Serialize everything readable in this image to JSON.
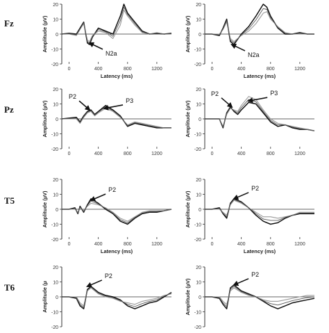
{
  "figure": {
    "row_labels": [
      "Fz",
      "Pz",
      "T5",
      "T6"
    ],
    "y_axis_title": "Amplitude (µV)",
    "y_axis_title_t6_left": "Amplitude (µ",
    "x_axis_title": "Latency (ms)",
    "colors": {
      "trace_black": "#111111",
      "trace_gray": "#9a9a9a",
      "trace_dark_gray": "#555555",
      "axis": "#333333"
    }
  },
  "chart_data": [
    {
      "id": "fz-left",
      "row": "Fz",
      "column": "left",
      "type": "line",
      "xlabel": "Latency (ms)",
      "ylabel": "Amplitude (µV)",
      "xlim": [
        -100,
        1400
      ],
      "ylim": [
        -20,
        20
      ],
      "xticks": [
        0,
        400,
        800,
        1200
      ],
      "yticks": [
        20,
        10,
        0,
        -10,
        -20
      ],
      "annotations": [
        {
          "text": "N2a",
          "x": 280,
          "y": -6
        }
      ],
      "series": [
        {
          "color": "black",
          "x": [
            -100,
            0,
            100,
            150,
            200,
            250,
            280,
            320,
            400,
            500,
            600,
            700,
            750,
            800,
            900,
            1000,
            1100,
            1200,
            1300,
            1400
          ],
          "y": [
            0,
            0.5,
            0,
            4,
            8,
            -6,
            -7,
            -2,
            4,
            2,
            0,
            12,
            20,
            14,
            8,
            2,
            0,
            0.5,
            0,
            0.5
          ]
        },
        {
          "color": "gray",
          "x": [
            -100,
            0,
            100,
            150,
            200,
            250,
            280,
            320,
            400,
            500,
            600,
            700,
            750,
            800,
            900,
            1000,
            1100,
            1200,
            1300,
            1400
          ],
          "y": [
            0,
            0,
            -1,
            3,
            7,
            -4,
            -5,
            -1,
            2,
            1,
            -3,
            6,
            16,
            12,
            6,
            1,
            0,
            1,
            0,
            0
          ]
        }
      ]
    },
    {
      "id": "fz-right",
      "row": "Fz",
      "column": "right",
      "type": "line",
      "xlabel": "Latency (ms)",
      "ylabel": "Amplitude (µV)",
      "xlim": [
        -100,
        1400
      ],
      "ylim": [
        -20,
        20
      ],
      "xticks": [
        0,
        400,
        800,
        1200
      ],
      "yticks": [
        20,
        10,
        0,
        -10,
        -20
      ],
      "annotations": [
        {
          "text": "N2a",
          "x": 270,
          "y": -7
        }
      ],
      "series": [
        {
          "color": "black",
          "x": [
            -100,
            0,
            100,
            150,
            200,
            250,
            300,
            400,
            500,
            600,
            700,
            750,
            800,
            900,
            1000,
            1100,
            1200,
            1300,
            1400
          ],
          "y": [
            0,
            0,
            -1,
            4,
            10,
            -5,
            -7,
            0,
            5,
            12,
            20,
            18,
            12,
            4,
            0,
            0,
            1,
            0,
            0
          ]
        },
        {
          "color": "gray",
          "x": [
            -100,
            0,
            100,
            150,
            200,
            250,
            300,
            400,
            500,
            600,
            700,
            750,
            800,
            900,
            1000,
            1100,
            1200,
            1300,
            1400
          ],
          "y": [
            0,
            0,
            0,
            3,
            8,
            -3,
            -5,
            -1,
            2,
            7,
            14,
            15,
            10,
            5,
            1,
            0,
            0,
            0,
            0
          ]
        }
      ]
    },
    {
      "id": "pz-left",
      "row": "Pz",
      "column": "left",
      "type": "line",
      "xlabel": "",
      "ylabel": "Amplitude (µV)",
      "xlim": [
        -100,
        1400
      ],
      "ylim": [
        -20,
        20
      ],
      "xticks": [
        0,
        400,
        800,
        1200
      ],
      "yticks": [
        20,
        10,
        0,
        -10,
        -20
      ],
      "annotations": [
        {
          "text": "P2",
          "x": 280,
          "y": 6
        },
        {
          "text": "P3",
          "x": 480,
          "y": 7
        }
      ],
      "series": [
        {
          "color": "black",
          "x": [
            -100,
            0,
            100,
            150,
            200,
            250,
            300,
            350,
            400,
            500,
            600,
            700,
            800,
            900,
            1000,
            1100,
            1200,
            1300,
            1400
          ],
          "y": [
            0,
            0.5,
            1,
            -2,
            2,
            5,
            6,
            3,
            5,
            9,
            6,
            2,
            -5,
            -3,
            -4,
            -5,
            -6,
            -6,
            -6
          ]
        },
        {
          "color": "gray",
          "x": [
            -100,
            0,
            100,
            150,
            200,
            250,
            300,
            350,
            400,
            500,
            600,
            700,
            800,
            900,
            1000,
            1100,
            1200,
            1300,
            1400
          ],
          "y": [
            0,
            0,
            0,
            -3,
            1,
            4,
            5,
            2,
            4,
            7,
            5,
            1,
            -4,
            -2,
            -3,
            -4,
            -5,
            -6,
            -6
          ]
        }
      ]
    },
    {
      "id": "pz-right",
      "row": "Pz",
      "column": "right",
      "type": "line",
      "xlabel": "",
      "ylabel": "Amplitude (µV)",
      "xlim": [
        -100,
        1400
      ],
      "ylim": [
        -20,
        20
      ],
      "xticks": [
        0,
        400,
        800,
        1200
      ],
      "yticks": [
        20,
        10,
        0,
        -10,
        -20
      ],
      "annotations": [
        {
          "text": "P2",
          "x": 270,
          "y": 8
        },
        {
          "text": "P3",
          "x": 500,
          "y": 12
        }
      ],
      "series": [
        {
          "color": "black",
          "x": [
            -100,
            0,
            100,
            150,
            200,
            250,
            300,
            350,
            400,
            500,
            600,
            700,
            800,
            900,
            1000,
            1100,
            1200,
            1300,
            1400
          ],
          "y": [
            0,
            0,
            0,
            -6,
            4,
            8,
            5,
            3,
            6,
            11,
            10,
            4,
            -2,
            -5,
            -4,
            -6,
            -7,
            -7,
            -8
          ]
        },
        {
          "color": "gray",
          "x": [
            -100,
            0,
            100,
            150,
            200,
            250,
            300,
            350,
            400,
            500,
            600,
            700,
            800,
            900,
            1000,
            1100,
            1200,
            1300,
            1400
          ],
          "y": [
            0,
            0,
            0,
            -5,
            3,
            7,
            6,
            5,
            9,
            15,
            13,
            6,
            0,
            -3,
            -4,
            -5,
            -6,
            -7,
            -8
          ]
        }
      ]
    },
    {
      "id": "t5-left",
      "row": "T5",
      "column": "left",
      "type": "line",
      "xlabel": "Latency (ms)",
      "ylabel": "Amplitude (µV)",
      "xlim": [
        -100,
        1400
      ],
      "ylim": [
        -20,
        20
      ],
      "xticks": [
        0,
        400,
        800,
        1200
      ],
      "yticks": [
        20,
        10,
        0,
        -10,
        -20
      ],
      "annotations": [
        {
          "text": "P2",
          "x": 300,
          "y": 6
        }
      ],
      "series": [
        {
          "color": "black",
          "x": [
            -100,
            0,
            80,
            120,
            150,
            200,
            250,
            300,
            400,
            500,
            600,
            700,
            800,
            900,
            1000,
            1100,
            1200,
            1300,
            1400
          ],
          "y": [
            0,
            0,
            1,
            -3,
            2,
            -2,
            3,
            7,
            4,
            0,
            -3,
            -8,
            -10,
            -6,
            -3,
            -2,
            -2,
            -1,
            0
          ]
        },
        {
          "color": "gray",
          "x": [
            -100,
            0,
            80,
            120,
            150,
            200,
            250,
            300,
            400,
            500,
            600,
            700,
            800,
            900,
            1000,
            1100,
            1200,
            1300,
            1400
          ],
          "y": [
            0,
            0,
            0,
            -2,
            1,
            -1,
            2,
            4,
            3,
            1,
            -2,
            -6,
            -8,
            -5,
            -2,
            -1,
            -1,
            -1,
            0
          ]
        }
      ]
    },
    {
      "id": "t5-right",
      "row": "T5",
      "column": "right",
      "type": "line",
      "xlabel": "Latency (ms)",
      "ylabel": "Amplitude (µV)",
      "xlim": [
        -100,
        1400
      ],
      "ylim": [
        -20,
        20
      ],
      "xticks": [
        0,
        400,
        800,
        1200
      ],
      "yticks": [
        20,
        10,
        0,
        -10,
        -20
      ],
      "annotations": [
        {
          "text": "P2",
          "x": 300,
          "y": 7
        }
      ],
      "series": [
        {
          "color": "black",
          "x": [
            -100,
            0,
            100,
            150,
            200,
            250,
            300,
            400,
            500,
            600,
            700,
            800,
            900,
            1000,
            1100,
            1200,
            1300,
            1400
          ],
          "y": [
            0,
            0,
            1,
            -3,
            -6,
            4,
            7,
            5,
            1,
            -4,
            -8,
            -10,
            -9,
            -6,
            -4,
            -3,
            -3,
            -3
          ]
        },
        {
          "color": "gray",
          "x": [
            -100,
            0,
            100,
            150,
            200,
            250,
            300,
            400,
            500,
            600,
            700,
            800,
            900,
            1000,
            1100,
            1200,
            1300,
            1400
          ],
          "y": [
            0,
            0,
            0,
            -2,
            -4,
            3,
            6,
            4,
            1,
            -2,
            -5,
            -5,
            -6,
            -5,
            -4,
            -2,
            -2,
            -2
          ]
        }
      ]
    },
    {
      "id": "t6-left",
      "row": "T6",
      "column": "left",
      "type": "line",
      "xlabel": "",
      "ylabel": "Amplitude (µ",
      "xlim": [
        -100,
        1400
      ],
      "ylim": [
        -20,
        20
      ],
      "xticks": [],
      "yticks": [
        20,
        10,
        0,
        -10,
        -20
      ],
      "annotations": [
        {
          "text": "P2",
          "x": 250,
          "y": 7
        }
      ],
      "series": [
        {
          "color": "black",
          "x": [
            -100,
            0,
            100,
            150,
            200,
            250,
            300,
            400,
            500,
            600,
            700,
            800,
            900,
            1000,
            1100,
            1200,
            1300,
            1400
          ],
          "y": [
            0,
            0,
            -1,
            -6,
            -8,
            5,
            7,
            3,
            1,
            0,
            -2,
            -6,
            -8,
            -6,
            -4,
            -3,
            0,
            3
          ]
        },
        {
          "color": "gray",
          "x": [
            -100,
            0,
            100,
            150,
            200,
            250,
            300,
            400,
            500,
            600,
            700,
            800,
            900,
            1000,
            1100,
            1200,
            1300,
            1400
          ],
          "y": [
            0,
            0,
            0,
            -4,
            -6,
            4,
            6,
            2,
            0,
            -1,
            -3,
            -4,
            -5,
            -3,
            -2,
            -1,
            1,
            2
          ]
        }
      ]
    },
    {
      "id": "t6-right",
      "row": "T6",
      "column": "right",
      "type": "line",
      "xlabel": "",
      "ylabel": "Amplitude (µV)",
      "xlim": [
        -100,
        1400
      ],
      "ylim": [
        -20,
        20
      ],
      "xticks": [],
      "yticks": [
        20,
        10,
        0,
        -10,
        -20
      ],
      "annotations": [
        {
          "text": "P2",
          "x": 300,
          "y": 8
        }
      ],
      "series": [
        {
          "color": "black",
          "x": [
            -100,
            0,
            100,
            150,
            200,
            250,
            300,
            400,
            500,
            600,
            700,
            800,
            900,
            1000,
            1100,
            1200,
            1300,
            1400
          ],
          "y": [
            0,
            0,
            -1,
            -5,
            -8,
            6,
            8,
            4,
            2,
            0,
            -3,
            -6,
            -8,
            -6,
            -4,
            -3,
            -2,
            -1
          ]
        },
        {
          "color": "gray",
          "x": [
            -100,
            0,
            100,
            150,
            200,
            250,
            300,
            400,
            500,
            600,
            700,
            800,
            900,
            1000,
            1100,
            1200,
            1300,
            1400
          ],
          "y": [
            0,
            0,
            0,
            -3,
            -5,
            4,
            6,
            3,
            1,
            0,
            -2,
            -3,
            -3,
            -2,
            -1,
            0,
            1,
            1
          ]
        }
      ]
    }
  ]
}
